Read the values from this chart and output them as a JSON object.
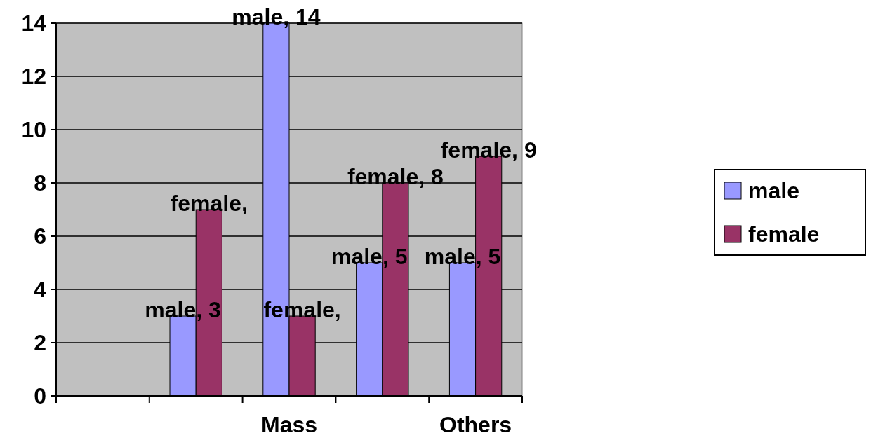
{
  "chart_data": {
    "type": "bar",
    "categories": [
      null,
      null,
      "Mass",
      null,
      "Others"
    ],
    "series": [
      {
        "name": "male",
        "color": "#9999ff",
        "values": [
          null,
          3,
          14,
          5,
          5
        ],
        "value_labels": [
          null,
          "male, 3",
          "male, 14",
          "male, 5",
          "male, 5"
        ]
      },
      {
        "name": "female",
        "color": "#993366",
        "values": [
          null,
          7,
          3,
          8,
          9
        ],
        "value_labels": [
          null,
          "female,",
          "female,",
          "female, 8",
          "female, 9"
        ]
      }
    ],
    "ylim": [
      0,
      14
    ],
    "yticks": [
      0,
      2,
      4,
      6,
      8,
      10,
      12,
      14
    ],
    "grid": "y",
    "legend": "right"
  }
}
